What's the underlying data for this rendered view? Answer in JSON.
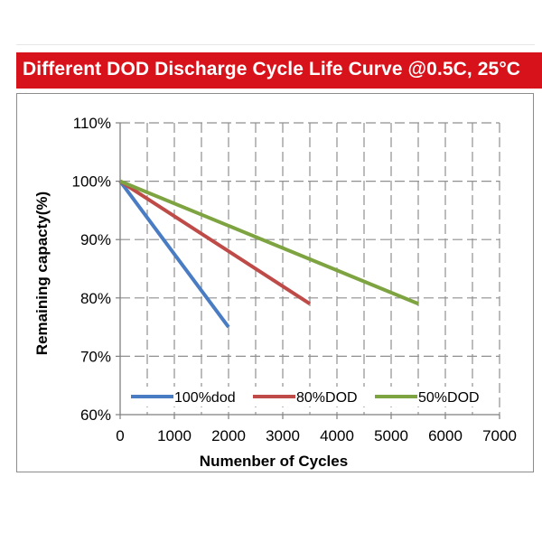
{
  "chart_data": {
    "type": "line",
    "title": "Different DOD Discharge Cycle Life Curve @0.5C, 25°C",
    "xlabel": "Numenber of Cycles",
    "ylabel": "Remaining capacty(%)",
    "xlim": [
      0,
      7000
    ],
    "ylim": [
      60,
      110
    ],
    "x_ticks": [
      0,
      1000,
      2000,
      3000,
      4000,
      5000,
      6000,
      7000
    ],
    "x_tick_labels": [
      "0",
      "1000",
      "2000",
      "3000",
      "4000",
      "5000",
      "6000",
      "7000"
    ],
    "y_ticks": [
      60,
      70,
      80,
      90,
      100,
      110
    ],
    "y_tick_labels": [
      "60%",
      "70%",
      "80%",
      "90%",
      "100%",
      "110%"
    ],
    "grid": true,
    "legend_position": "bottom-inside",
    "series": [
      {
        "name": "100%dod",
        "color": "#4a7cc4",
        "x": [
          0,
          2000
        ],
        "y": [
          100,
          75
        ]
      },
      {
        "name": "80%DOD",
        "color": "#be4b48",
        "x": [
          0,
          3500
        ],
        "y": [
          100,
          79
        ]
      },
      {
        "name": "50%DOD",
        "color": "#7ea341",
        "x": [
          0,
          5500
        ],
        "y": [
          100,
          79
        ]
      }
    ]
  }
}
